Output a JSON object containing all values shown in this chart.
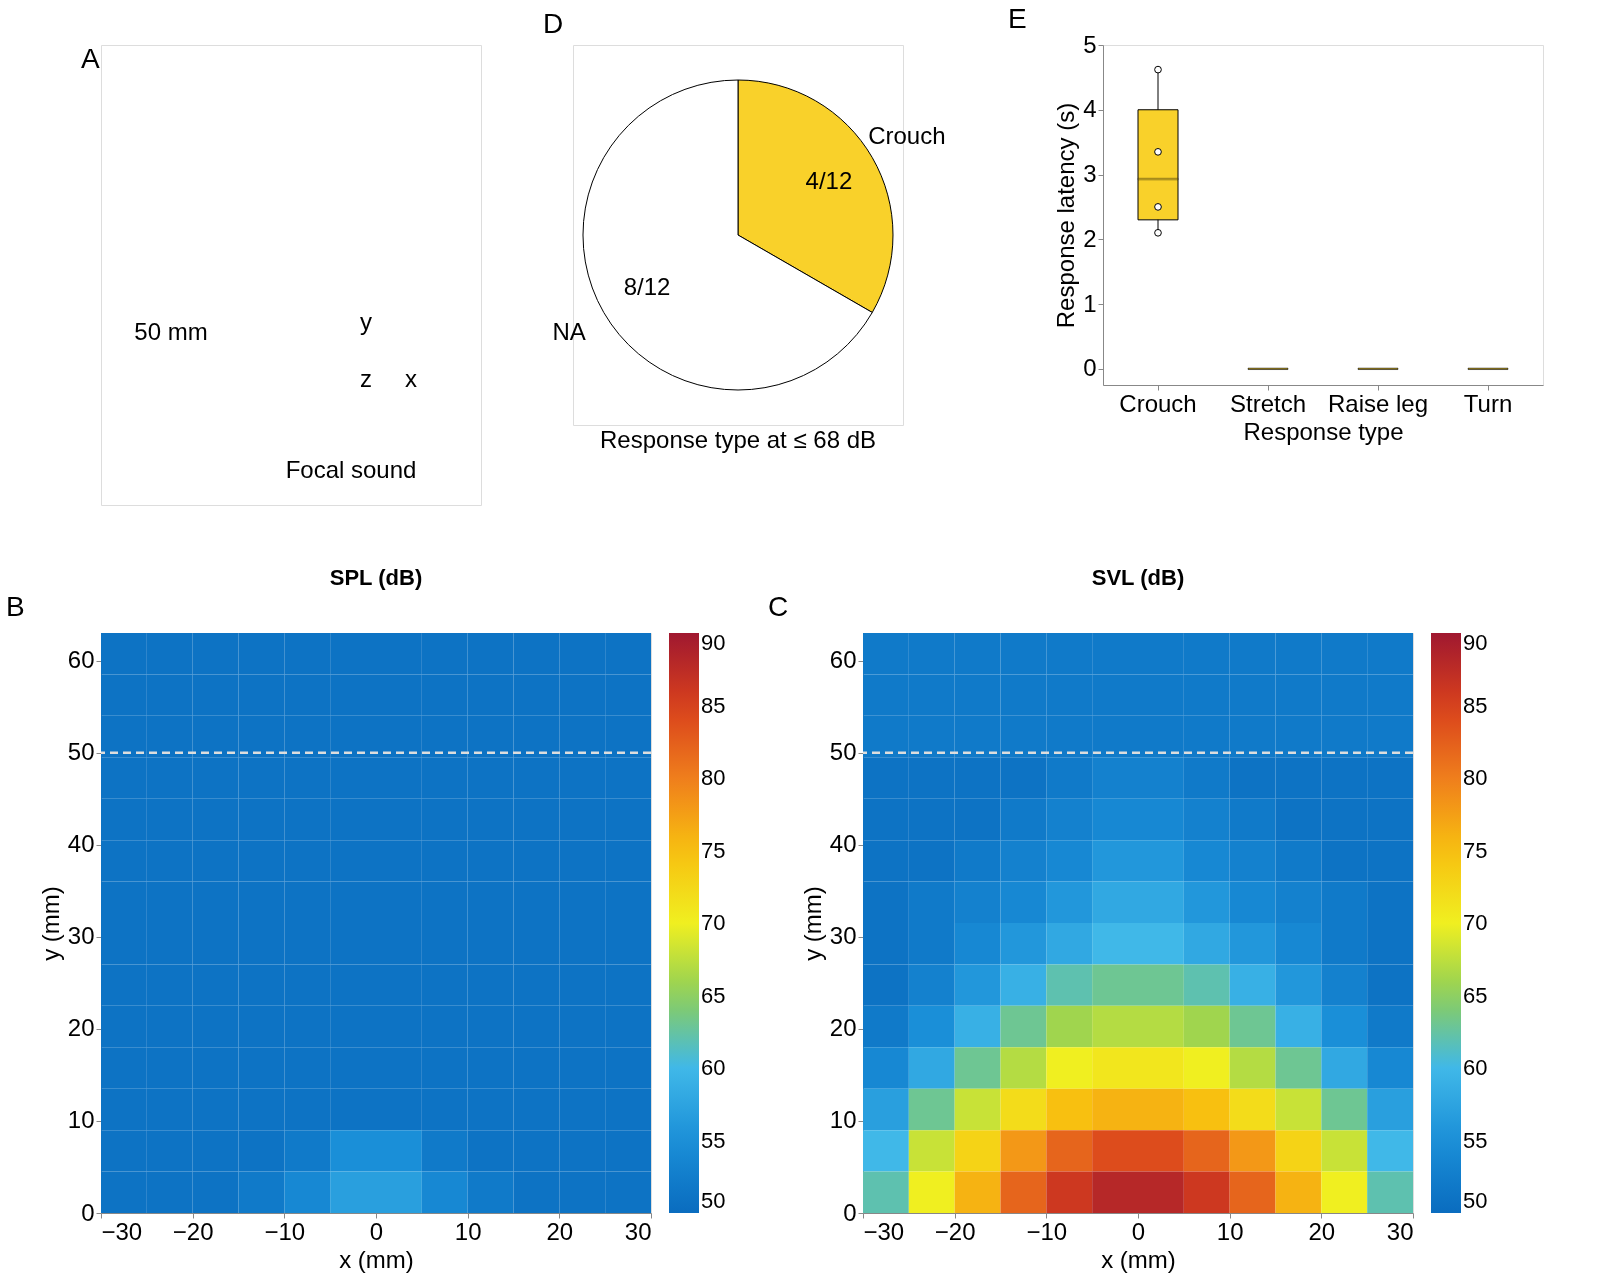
{
  "chart_data": [
    {
      "type": "other",
      "annotations": [
        "A",
        "50 mm",
        "y",
        "z",
        "x",
        "Focal sound"
      ]
    },
    {
      "type": "pie",
      "title": "Response type at ≤ 68 dB",
      "annotations": [
        "D",
        "4/12",
        "8/12"
      ],
      "categories": [
        "Crouch",
        "NA"
      ],
      "values": [
        33.33,
        66.67
      ],
      "colors": [
        "#f9d12a",
        "#ffffff"
      ]
    },
    {
      "type": "box",
      "annotations": [
        "E"
      ],
      "xlabel": "Response type",
      "ylabel": "Response latency (s)",
      "categories": [
        "Crouch",
        "Stretch",
        "Raise leg",
        "Turn"
      ],
      "ylim": [
        -0.25,
        5
      ],
      "yticks": [
        {
          "value": 0,
          "label": "0"
        },
        {
          "value": 1,
          "label": "1"
        },
        {
          "value": 2,
          "label": "2"
        },
        {
          "value": 3,
          "label": "3"
        },
        {
          "value": 4,
          "label": "4"
        },
        {
          "value": 5,
          "label": "5"
        }
      ],
      "grid": false,
      "color": "#f9d12a",
      "boxes": [
        {
          "low": 2.1,
          "q1": 2.3,
          "median": 2.93,
          "q3": 4.0,
          "high": 4.62
        },
        {
          "low": 0,
          "q1": 0,
          "median": 0,
          "q3": 0,
          "high": 0
        },
        {
          "low": 0,
          "q1": 0,
          "median": 0,
          "q3": 0,
          "high": 0
        },
        {
          "low": 0,
          "q1": 0,
          "median": 0,
          "q3": 0,
          "high": 0
        }
      ],
      "series": [
        {
          "type": "scatter",
          "x": [
            "Crouch",
            "Crouch",
            "Crouch",
            "Crouch"
          ],
          "values": [
            4.62,
            3.35,
            2.5,
            2.1
          ],
          "color": "#ffffff"
        }
      ]
    },
    {
      "type": "heatmap",
      "title": "SPL (dB)",
      "annotations": [
        "B"
      ],
      "xlabel": "x (mm)",
      "ylabel": "y (mm)",
      "xlim": [
        -30,
        30
      ],
      "ylim": [
        0,
        63
      ],
      "xticks": [
        -30,
        -20,
        -10,
        0,
        10,
        20,
        30
      ],
      "yticks": [
        0,
        10,
        20,
        30,
        40,
        50,
        60
      ],
      "clim": [
        50,
        90
      ],
      "cticks": [
        50,
        55,
        60,
        65,
        70,
        75,
        80,
        85,
        90
      ],
      "ref_lines": [
        {
          "axis": "y",
          "value": 50,
          "color": "#dddddd",
          "line_style": "dashed"
        }
      ],
      "x": [
        -27.5,
        -22.5,
        -17.5,
        -12.5,
        -7.5,
        -2.5,
        2.5,
        7.5,
        12.5,
        17.5,
        22.5,
        27.5
      ],
      "y": [
        60.75,
        56.25,
        51.75,
        47.25,
        42.75,
        38.25,
        33.75,
        29.25,
        24.75,
        20.25,
        15.75,
        11.25,
        6.75,
        2.25
      ],
      "cells": [
        [
          51,
          51,
          51,
          51,
          51,
          51,
          51,
          51,
          51,
          51,
          51,
          51
        ],
        [
          51,
          51,
          51,
          51,
          51,
          51,
          51,
          51,
          51,
          51,
          51,
          51
        ],
        [
          51,
          51,
          51,
          51,
          51,
          51,
          51,
          51,
          51,
          51,
          51,
          51
        ],
        [
          51,
          51,
          51,
          51,
          51,
          51,
          51,
          51,
          51,
          51,
          51,
          51
        ],
        [
          51,
          51,
          51,
          51,
          51,
          51,
          51,
          51,
          51,
          51,
          51,
          51
        ],
        [
          51,
          51,
          51,
          51,
          51,
          51,
          51,
          51,
          51,
          51,
          51,
          51
        ],
        [
          51,
          51,
          51,
          51,
          51,
          51,
          51,
          51,
          51,
          51,
          51,
          51
        ],
        [
          51,
          51,
          51,
          51,
          51,
          51,
          51,
          51,
          51,
          51,
          51,
          51
        ],
        [
          51,
          51,
          51,
          51,
          51,
          51,
          51,
          51,
          51,
          51,
          51,
          51
        ],
        [
          51,
          51,
          51,
          51,
          51,
          51,
          51,
          51,
          51,
          51,
          51,
          51
        ],
        [
          51,
          51,
          51,
          51,
          51,
          51,
          51,
          51,
          51,
          51,
          51,
          51
        ],
        [
          51,
          51,
          51,
          51,
          51,
          51,
          51,
          51,
          51,
          51,
          51,
          51
        ],
        [
          51,
          51,
          51,
          51,
          52,
          55,
          55,
          52,
          51,
          51,
          51,
          51
        ],
        [
          51,
          51,
          51,
          52,
          54,
          57,
          57,
          54,
          52,
          51,
          51,
          51
        ]
      ]
    },
    {
      "type": "heatmap",
      "title": "SVL (dB)",
      "annotations": [
        "C"
      ],
      "xlabel": "x (mm)",
      "ylabel": "y (mm)",
      "xlim": [
        -30,
        30
      ],
      "ylim": [
        0,
        63
      ],
      "xticks": [
        -30,
        -20,
        -10,
        0,
        10,
        20,
        30
      ],
      "yticks": [
        0,
        10,
        20,
        30,
        40,
        50,
        60
      ],
      "clim": [
        50,
        90
      ],
      "cticks": [
        50,
        55,
        60,
        65,
        70,
        75,
        80,
        85,
        90
      ],
      "ref_lines": [
        {
          "axis": "y",
          "value": 50,
          "color": "#dddddd",
          "line_style": "dashed"
        }
      ],
      "x": [
        -27.5,
        -22.5,
        -17.5,
        -12.5,
        -7.5,
        -2.5,
        2.5,
        7.5,
        12.5,
        17.5,
        22.5,
        27.5
      ],
      "y": [
        60.75,
        56.25,
        51.75,
        47.25,
        42.75,
        38.25,
        33.75,
        29.25,
        24.75,
        20.25,
        15.75,
        11.25,
        6.75,
        2.25
      ],
      "cells": [
        [
          52,
          52,
          52,
          52,
          52,
          52,
          52,
          52,
          52,
          52,
          52,
          52
        ],
        [
          52,
          52,
          52,
          52,
          52,
          52,
          52,
          52,
          52,
          52,
          52,
          52
        ],
        [
          52,
          52,
          52,
          52,
          52,
          52,
          52,
          52,
          52,
          52,
          52,
          52
        ],
        [
          51,
          51,
          51,
          51,
          52,
          53,
          53,
          52,
          51,
          51,
          51,
          51
        ],
        [
          51,
          51,
          51,
          52,
          53,
          54,
          54,
          53,
          52,
          51,
          51,
          51
        ],
        [
          51,
          51,
          52,
          53,
          54,
          56,
          56,
          54,
          53,
          52,
          51,
          51
        ],
        [
          51,
          52,
          53,
          54,
          56,
          58,
          58,
          56,
          54,
          53,
          52,
          51
        ],
        [
          51,
          52,
          54,
          56,
          58,
          60,
          60,
          58,
          56,
          54,
          52,
          51
        ],
        [
          51,
          53,
          56,
          59,
          62,
          63,
          63,
          62,
          59,
          56,
          53,
          51
        ],
        [
          52,
          55,
          59,
          63,
          66,
          67,
          67,
          66,
          63,
          59,
          55,
          52
        ],
        [
          54,
          58,
          63,
          67,
          70,
          71,
          71,
          70,
          67,
          63,
          58,
          54
        ],
        [
          57,
          63,
          68,
          72,
          75,
          76,
          76,
          75,
          72,
          68,
          63,
          57
        ],
        [
          60,
          68,
          73,
          78,
          82,
          84,
          84,
          82,
          78,
          73,
          68,
          60
        ],
        [
          62,
          70,
          76,
          82,
          86,
          88,
          88,
          86,
          82,
          76,
          70,
          62
        ]
      ]
    }
  ]
}
